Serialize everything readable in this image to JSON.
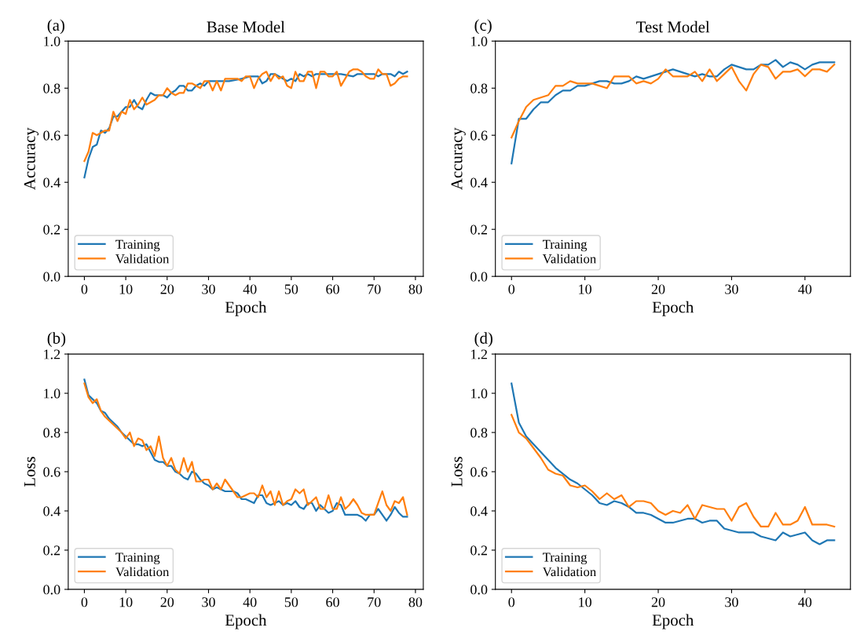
{
  "chart_data": [
    {
      "type": "line",
      "title": "Base Model",
      "xlabel": "Epoch",
      "ylabel": "Accuracy",
      "annotations": [
        "(a)"
      ],
      "legend": "bottom left",
      "xlim": [
        -3.9,
        81.9
      ],
      "xticks": [
        0,
        10,
        20,
        30,
        40,
        50,
        60,
        70,
        80
      ],
      "ylim": [
        0,
        1.0
      ],
      "yticks": [
        {
          "value": 0,
          "label": "0.0"
        },
        {
          "value": 0.2,
          "label": "0.2"
        },
        {
          "value": 0.4,
          "label": "0.4"
        },
        {
          "value": 0.6,
          "label": "0.6"
        },
        {
          "value": 0.8,
          "label": "0.8"
        },
        {
          "value": 1.0,
          "label": "1.0"
        }
      ],
      "series": [
        {
          "name": "Training",
          "color": "#1f77b4",
          "x": [
            0,
            1,
            2,
            3,
            4,
            5,
            6,
            7,
            8,
            9,
            10,
            11,
            12,
            13,
            14,
            15,
            16,
            17,
            18,
            19,
            20,
            21,
            22,
            23,
            24,
            25,
            26,
            27,
            28,
            29,
            30,
            31,
            35,
            38,
            40,
            42,
            43,
            44,
            45,
            46,
            47,
            48,
            49,
            50,
            51,
            52,
            53,
            54,
            55,
            56,
            57,
            60,
            62,
            65,
            66,
            68,
            69,
            70,
            71,
            72,
            74,
            75,
            76,
            77,
            78
          ],
          "values": [
            0.42,
            0.5,
            0.55,
            0.56,
            0.62,
            0.61,
            0.63,
            0.68,
            0.68,
            0.7,
            0.72,
            0.72,
            0.75,
            0.72,
            0.71,
            0.75,
            0.78,
            0.77,
            0.77,
            0.77,
            0.76,
            0.78,
            0.79,
            0.81,
            0.81,
            0.79,
            0.79,
            0.81,
            0.82,
            0.81,
            0.83,
            0.83,
            0.83,
            0.84,
            0.85,
            0.85,
            0.82,
            0.83,
            0.86,
            0.86,
            0.85,
            0.84,
            0.83,
            0.84,
            0.83,
            0.86,
            0.85,
            0.86,
            0.85,
            0.86,
            0.86,
            0.86,
            0.86,
            0.85,
            0.86,
            0.86,
            0.86,
            0.86,
            0.85,
            0.86,
            0.86,
            0.85,
            0.87,
            0.86,
            0.87
          ]
        },
        {
          "name": "Validation",
          "color": "#ff7f0e",
          "x": [
            0,
            1,
            2,
            3,
            4,
            5,
            6,
            7,
            8,
            9,
            10,
            11,
            12,
            13,
            14,
            15,
            16,
            17,
            18,
            19,
            20,
            21,
            22,
            23,
            24,
            25,
            26,
            27,
            28,
            29,
            30,
            31,
            32,
            33,
            34,
            35,
            36,
            37,
            38,
            39,
            40,
            41,
            42,
            43,
            44,
            45,
            46,
            47,
            48,
            49,
            50,
            51,
            52,
            53,
            54,
            55,
            56,
            57,
            58,
            59,
            60,
            61,
            62,
            63,
            64,
            65,
            66,
            67,
            68,
            69,
            70,
            71,
            72,
            73,
            74,
            75,
            76,
            77,
            78
          ],
          "values": [
            0.49,
            0.53,
            0.61,
            0.6,
            0.61,
            0.62,
            0.62,
            0.7,
            0.66,
            0.7,
            0.69,
            0.75,
            0.71,
            0.73,
            0.76,
            0.73,
            0.74,
            0.75,
            0.77,
            0.77,
            0.8,
            0.78,
            0.77,
            0.78,
            0.78,
            0.82,
            0.82,
            0.81,
            0.8,
            0.83,
            0.83,
            0.79,
            0.83,
            0.79,
            0.84,
            0.84,
            0.84,
            0.84,
            0.83,
            0.85,
            0.85,
            0.8,
            0.84,
            0.86,
            0.87,
            0.83,
            0.86,
            0.84,
            0.85,
            0.81,
            0.8,
            0.87,
            0.83,
            0.83,
            0.87,
            0.87,
            0.8,
            0.87,
            0.87,
            0.85,
            0.85,
            0.87,
            0.81,
            0.84,
            0.87,
            0.88,
            0.88,
            0.87,
            0.85,
            0.84,
            0.84,
            0.88,
            0.86,
            0.86,
            0.81,
            0.82,
            0.84,
            0.85,
            0.85
          ]
        }
      ]
    },
    {
      "type": "line",
      "title": "Test Model",
      "xlabel": "Epoch",
      "ylabel": "Accuracy",
      "annotations": [
        "(c)"
      ],
      "legend": "bottom left",
      "xlim": [
        -2.2,
        46.2
      ],
      "xticks": [
        0,
        10,
        20,
        30,
        40
      ],
      "ylim": [
        0,
        1.0
      ],
      "yticks": [
        {
          "value": 0,
          "label": "0.0"
        },
        {
          "value": 0.2,
          "label": "0.2"
        },
        {
          "value": 0.4,
          "label": "0.4"
        },
        {
          "value": 0.6,
          "label": "0.6"
        },
        {
          "value": 0.8,
          "label": "0.8"
        },
        {
          "value": 1.0,
          "label": "1.0"
        }
      ],
      "x": [
        0,
        1,
        2,
        3,
        4,
        5,
        6,
        7,
        8,
        9,
        10,
        11,
        12,
        13,
        14,
        15,
        16,
        17,
        18,
        19,
        20,
        21,
        22,
        23,
        24,
        25,
        26,
        27,
        28,
        29,
        30,
        31,
        32,
        33,
        34,
        35,
        36,
        37,
        38,
        39,
        40,
        41,
        42,
        43,
        44
      ],
      "series": [
        {
          "name": "Training",
          "color": "#1f77b4",
          "values": [
            0.48,
            0.67,
            0.67,
            0.71,
            0.74,
            0.74,
            0.77,
            0.79,
            0.79,
            0.81,
            0.81,
            0.82,
            0.83,
            0.83,
            0.82,
            0.82,
            0.83,
            0.85,
            0.84,
            0.85,
            0.86,
            0.87,
            0.88,
            0.87,
            0.86,
            0.85,
            0.86,
            0.85,
            0.85,
            0.88,
            0.9,
            0.89,
            0.88,
            0.88,
            0.9,
            0.9,
            0.92,
            0.89,
            0.91,
            0.9,
            0.88,
            0.9,
            0.91,
            0.91,
            0.91
          ]
        },
        {
          "name": "Validation",
          "color": "#ff7f0e",
          "values": [
            0.59,
            0.66,
            0.72,
            0.75,
            0.76,
            0.77,
            0.81,
            0.81,
            0.83,
            0.82,
            0.82,
            0.82,
            0.81,
            0.8,
            0.85,
            0.85,
            0.85,
            0.82,
            0.83,
            0.82,
            0.84,
            0.88,
            0.85,
            0.85,
            0.85,
            0.87,
            0.83,
            0.88,
            0.83,
            0.86,
            0.89,
            0.83,
            0.79,
            0.86,
            0.9,
            0.89,
            0.84,
            0.87,
            0.87,
            0.88,
            0.85,
            0.88,
            0.88,
            0.87,
            0.9
          ]
        }
      ]
    },
    {
      "type": "line",
      "xlabel": "Epoch",
      "ylabel": "Loss",
      "annotations": [
        "(b)"
      ],
      "legend": "bottom left",
      "xlim": [
        -3.9,
        81.9
      ],
      "xticks": [
        0,
        10,
        20,
        30,
        40,
        50,
        60,
        70,
        80
      ],
      "ylim": [
        0,
        1.2
      ],
      "yticks": [
        {
          "value": 0,
          "label": "0.0"
        },
        {
          "value": 0.2,
          "label": "0.2"
        },
        {
          "value": 0.4,
          "label": "0.4"
        },
        {
          "value": 0.6,
          "label": "0.6"
        },
        {
          "value": 0.8,
          "label": "0.8"
        },
        {
          "value": 1.0,
          "label": "1.0"
        },
        {
          "value": 1.2,
          "label": "1.2"
        }
      ],
      "x": [
        0,
        1,
        2,
        3,
        4,
        5,
        6,
        7,
        8,
        9,
        10,
        11,
        12,
        13,
        14,
        15,
        16,
        17,
        18,
        19,
        20,
        21,
        22,
        23,
        24,
        25,
        26,
        27,
        28,
        29,
        30,
        31,
        32,
        33,
        34,
        35,
        36,
        37,
        38,
        39,
        40,
        41,
        42,
        43,
        44,
        45,
        46,
        47,
        48,
        49,
        50,
        51,
        52,
        53,
        54,
        55,
        56,
        57,
        58,
        59,
        60,
        61,
        62,
        63,
        64,
        65,
        66,
        67,
        68,
        69,
        70,
        71,
        72,
        73,
        74,
        75,
        76,
        77,
        78
      ],
      "series": [
        {
          "name": "Training",
          "color": "#1f77b4",
          "values": [
            1.07,
            0.99,
            0.97,
            0.95,
            0.91,
            0.9,
            0.87,
            0.85,
            0.83,
            0.8,
            0.78,
            0.76,
            0.74,
            0.74,
            0.73,
            0.74,
            0.7,
            0.66,
            0.65,
            0.65,
            0.63,
            0.63,
            0.6,
            0.59,
            0.57,
            0.56,
            0.6,
            0.59,
            0.56,
            0.54,
            0.53,
            0.51,
            0.52,
            0.51,
            0.5,
            0.5,
            0.5,
            0.49,
            0.46,
            0.46,
            0.45,
            0.44,
            0.48,
            0.48,
            0.44,
            0.43,
            0.44,
            0.45,
            0.43,
            0.44,
            0.43,
            0.45,
            0.42,
            0.41,
            0.44,
            0.44,
            0.4,
            0.43,
            0.41,
            0.39,
            0.4,
            0.44,
            0.43,
            0.38,
            0.38,
            0.38,
            0.38,
            0.37,
            0.35,
            0.38,
            0.38,
            0.41,
            0.38,
            0.35,
            0.38,
            0.42,
            0.39,
            0.37,
            0.37
          ]
        },
        {
          "name": "Validation",
          "color": "#ff7f0e",
          "values": [
            1.05,
            0.98,
            0.95,
            0.97,
            0.91,
            0.88,
            0.86,
            0.84,
            0.82,
            0.8,
            0.77,
            0.8,
            0.73,
            0.77,
            0.76,
            0.71,
            0.73,
            0.68,
            0.78,
            0.67,
            0.63,
            0.67,
            0.61,
            0.59,
            0.67,
            0.6,
            0.65,
            0.55,
            0.55,
            0.56,
            0.56,
            0.51,
            0.54,
            0.51,
            0.56,
            0.53,
            0.5,
            0.47,
            0.47,
            0.48,
            0.49,
            0.49,
            0.47,
            0.53,
            0.47,
            0.5,
            0.43,
            0.5,
            0.43,
            0.45,
            0.46,
            0.51,
            0.49,
            0.51,
            0.43,
            0.45,
            0.47,
            0.41,
            0.41,
            0.48,
            0.41,
            0.41,
            0.47,
            0.41,
            0.43,
            0.46,
            0.43,
            0.39,
            0.38,
            0.38,
            0.38,
            0.44,
            0.5,
            0.43,
            0.4,
            0.45,
            0.44,
            0.47,
            0.38
          ]
        }
      ]
    },
    {
      "type": "line",
      "xlabel": "Epoch",
      "ylabel": "Loss",
      "annotations": [
        "(d)"
      ],
      "legend": "bottom left",
      "xlim": [
        -2.2,
        46.2
      ],
      "xticks": [
        0,
        10,
        20,
        30,
        40
      ],
      "ylim": [
        0,
        1.2
      ],
      "yticks": [
        {
          "value": 0,
          "label": "0.0"
        },
        {
          "value": 0.2,
          "label": "0.2"
        },
        {
          "value": 0.4,
          "label": "0.4"
        },
        {
          "value": 0.6,
          "label": "0.6"
        },
        {
          "value": 0.8,
          "label": "0.8"
        },
        {
          "value": 1.0,
          "label": "1.0"
        },
        {
          "value": 1.2,
          "label": "1.2"
        }
      ],
      "x": [
        0,
        1,
        2,
        3,
        4,
        5,
        6,
        7,
        8,
        9,
        10,
        11,
        12,
        13,
        14,
        15,
        16,
        17,
        18,
        19,
        20,
        21,
        22,
        23,
        24,
        25,
        26,
        27,
        28,
        29,
        30,
        31,
        32,
        33,
        34,
        35,
        36,
        37,
        38,
        39,
        40,
        41,
        42,
        43,
        44
      ],
      "series": [
        {
          "name": "Training",
          "color": "#1f77b4",
          "values": [
            1.05,
            0.85,
            0.78,
            0.74,
            0.7,
            0.66,
            0.62,
            0.59,
            0.56,
            0.54,
            0.51,
            0.48,
            0.44,
            0.43,
            0.45,
            0.44,
            0.42,
            0.39,
            0.39,
            0.38,
            0.36,
            0.34,
            0.34,
            0.35,
            0.36,
            0.36,
            0.34,
            0.35,
            0.35,
            0.31,
            0.3,
            0.29,
            0.29,
            0.29,
            0.27,
            0.26,
            0.25,
            0.29,
            0.27,
            0.28,
            0.29,
            0.25,
            0.23,
            0.25,
            0.25
          ]
        },
        {
          "name": "Validation",
          "color": "#ff7f0e",
          "values": [
            0.89,
            0.8,
            0.77,
            0.72,
            0.67,
            0.61,
            0.59,
            0.58,
            0.53,
            0.52,
            0.53,
            0.5,
            0.46,
            0.49,
            0.46,
            0.48,
            0.42,
            0.45,
            0.45,
            0.44,
            0.4,
            0.38,
            0.4,
            0.39,
            0.43,
            0.36,
            0.43,
            0.42,
            0.41,
            0.41,
            0.35,
            0.42,
            0.44,
            0.37,
            0.32,
            0.32,
            0.39,
            0.33,
            0.33,
            0.35,
            0.42,
            0.33,
            0.33,
            0.33,
            0.32
          ]
        }
      ]
    }
  ]
}
